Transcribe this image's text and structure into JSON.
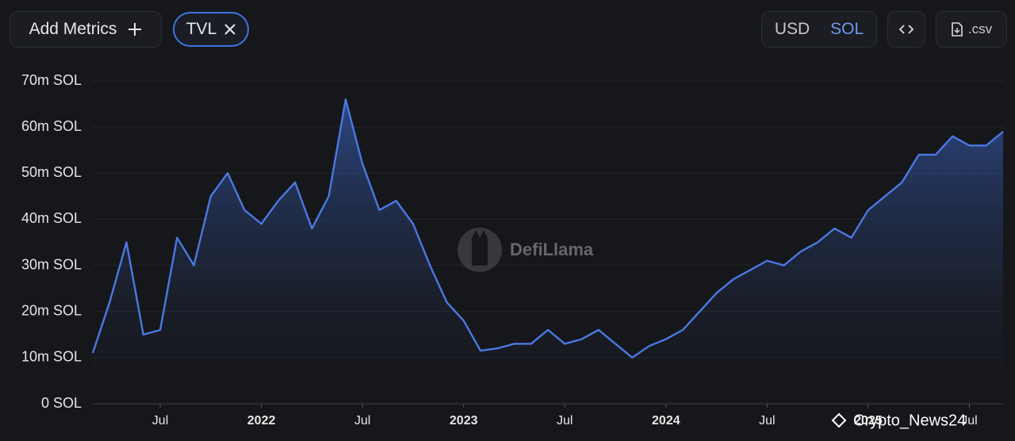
{
  "toolbar": {
    "add_metrics": "Add Metrics",
    "metric_chip": "TVL",
    "currency_options": [
      "USD",
      "SOL"
    ],
    "csv": ".csv"
  },
  "watermarks": {
    "brand": "DefiLlama",
    "overlay": "Crypto_News24"
  },
  "chart_data": {
    "type": "area",
    "series": [
      {
        "name": "TVL",
        "color": "#4a78e2",
        "x": [
          "2021-03",
          "2021-04",
          "2021-05",
          "2021-06",
          "2021-07",
          "2021-08",
          "2021-09",
          "2021-10",
          "2021-11",
          "2021-12",
          "2022-01",
          "2022-02",
          "2022-03",
          "2022-04",
          "2022-05",
          "2022-06",
          "2022-07",
          "2022-08",
          "2022-09",
          "2022-10",
          "2022-11",
          "2022-12",
          "2023-01",
          "2023-02",
          "2023-03",
          "2023-04",
          "2023-05",
          "2023-06",
          "2023-07",
          "2023-08",
          "2023-09",
          "2023-10",
          "2023-11",
          "2023-12",
          "2024-01",
          "2024-02",
          "2024-03",
          "2024-04",
          "2024-05",
          "2024-06",
          "2024-07",
          "2024-08",
          "2024-09",
          "2024-10",
          "2024-11",
          "2024-12",
          "2025-01",
          "2025-02",
          "2025-03",
          "2025-04",
          "2025-05",
          "2025-06",
          "2025-07",
          "2025-08",
          "2025-09"
        ],
        "values": [
          11000000,
          22000000,
          35000000,
          15000000,
          16000000,
          36000000,
          30000000,
          45000000,
          50000000,
          42000000,
          39000000,
          44000000,
          48000000,
          38000000,
          45000000,
          66000000,
          52000000,
          42000000,
          44000000,
          39000000,
          30000000,
          22000000,
          18000000,
          11500000,
          12000000,
          13000000,
          13000000,
          16000000,
          13000000,
          14000000,
          16000000,
          13000000,
          10000000,
          12500000,
          14000000,
          16000000,
          20000000,
          24000000,
          27000000,
          29000000,
          31000000,
          30000000,
          33000000,
          35000000,
          38000000,
          36000000,
          42000000,
          45000000,
          48000000,
          54000000,
          54000000,
          58000000,
          56000000,
          56000000,
          59000000
        ]
      }
    ],
    "xlim": [
      "2021-03",
      "2025-09"
    ],
    "xticks": [
      {
        "value": "2021-07",
        "label": "Jul"
      },
      {
        "value": "2022-01",
        "label": "2022"
      },
      {
        "value": "2022-07",
        "label": "Jul"
      },
      {
        "value": "2023-01",
        "label": "2023"
      },
      {
        "value": "2023-07",
        "label": "Jul"
      },
      {
        "value": "2024-01",
        "label": "2024"
      },
      {
        "value": "2024-07",
        "label": "Jul"
      },
      {
        "value": "2025-01",
        "label": "2025"
      },
      {
        "value": "2025-07",
        "label": "Jul"
      }
    ],
    "ylim": [
      0,
      70000000
    ],
    "yticks": [
      {
        "value": 0,
        "label": "0 SOL"
      },
      {
        "value": 10000000,
        "label": "10m SOL"
      },
      {
        "value": 20000000,
        "label": "20m SOL"
      },
      {
        "value": 30000000,
        "label": "30m SOL"
      },
      {
        "value": 40000000,
        "label": "40m SOL"
      },
      {
        "value": 50000000,
        "label": "50m SOL"
      },
      {
        "value": 60000000,
        "label": "60m SOL"
      },
      {
        "value": 70000000,
        "label": "70m SOL"
      }
    ],
    "grid": true
  }
}
